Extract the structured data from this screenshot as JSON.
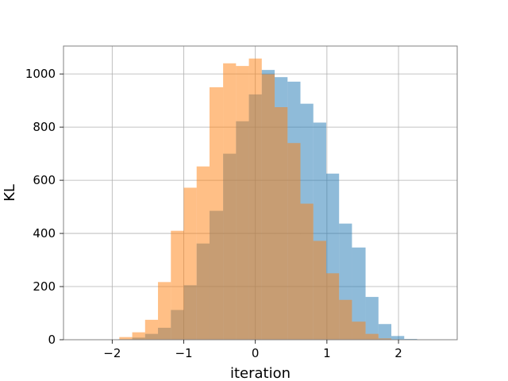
{
  "chart_data": {
    "type": "bar",
    "title": "",
    "xlabel": "iteration",
    "ylabel": "KL",
    "xlim": [
      -2.68,
      2.82
    ],
    "ylim": [
      0,
      1105
    ],
    "grid": true,
    "xticks": [
      -2,
      -1,
      0,
      1,
      2
    ],
    "xtick_labels": [
      "−2",
      "−1",
      "0",
      "1",
      "2"
    ],
    "yticks": [
      0,
      200,
      400,
      600,
      800,
      1000
    ],
    "ytick_labels": [
      "0",
      "200",
      "400",
      "600",
      "800",
      "1000"
    ],
    "series": [
      {
        "color": "#1f77b4",
        "opacity": 0.5,
        "bin_edges": [
          -2.27,
          -2.09,
          -1.91,
          -1.72,
          -1.54,
          -1.36,
          -1.18,
          -1.0,
          -0.82,
          -0.64,
          -0.45,
          -0.27,
          -0.09,
          0.09,
          0.27,
          0.45,
          0.63,
          0.81,
          0.99,
          1.17,
          1.35,
          1.54,
          1.72,
          1.9,
          2.08,
          2.26,
          2.44
        ],
        "counts": [
          0,
          1,
          2,
          8,
          22,
          45,
          112,
          205,
          362,
          485,
          700,
          822,
          923,
          1015,
          988,
          971,
          888,
          817,
          625,
          437,
          347,
          161,
          59,
          14,
          3,
          0
        ]
      },
      {
        "color": "#ff7f0e",
        "opacity": 0.5,
        "bin_edges": [
          -1.9,
          -1.72,
          -1.54,
          -1.36,
          -1.18,
          -1.0,
          -0.82,
          -0.64,
          -0.45,
          -0.27,
          -0.09,
          0.09,
          0.27,
          0.45,
          0.63,
          0.81,
          0.99,
          1.17,
          1.35,
          1.54,
          1.72,
          1.9
        ],
        "counts": [
          10,
          28,
          75,
          217,
          410,
          572,
          652,
          950,
          1040,
          1030,
          1058,
          999,
          875,
          740,
          512,
          372,
          250,
          150,
          68,
          22,
          5
        ]
      }
    ]
  }
}
